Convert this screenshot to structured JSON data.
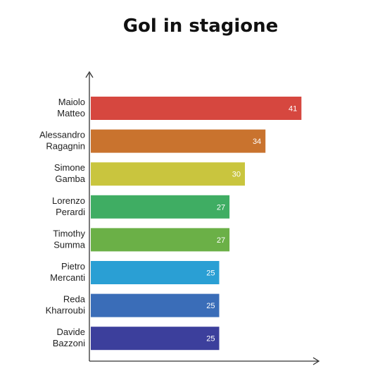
{
  "chart_data": {
    "type": "bar",
    "orientation": "horizontal",
    "title": "Gol in stagione",
    "categories": [
      "Maiolo Matteo",
      "Alessandro Ragagnin",
      "Simone Gamba",
      "Lorenzo Perardi",
      "Timothy Summa",
      "Pietro Mercanti",
      "Reda Kharroubi",
      "Davide Bazzoni"
    ],
    "category_lines": [
      [
        "Maiolo",
        "Matteo"
      ],
      [
        "Alessandro",
        "Ragagnin"
      ],
      [
        "Simone",
        "Gamba"
      ],
      [
        "Lorenzo",
        "Perardi"
      ],
      [
        "Timothy",
        "Summa"
      ],
      [
        "Pietro",
        "Mercanti"
      ],
      [
        "Reda",
        "Kharroubi"
      ],
      [
        "Davide",
        "Bazzoni"
      ]
    ],
    "values": [
      41,
      34,
      30,
      27,
      27,
      25,
      25,
      25
    ],
    "value_labels": [
      "41",
      "34",
      "30",
      "27",
      "27",
      "25",
      "25",
      "25"
    ],
    "colors": [
      "#d6473f",
      "#c9732e",
      "#c9c53e",
      "#3fad63",
      "#6bb047",
      "#2a9fd4",
      "#3a6db8",
      "#3c3f9c"
    ],
    "xlabel": "",
    "ylabel": "",
    "grid": false,
    "legend": "none"
  }
}
